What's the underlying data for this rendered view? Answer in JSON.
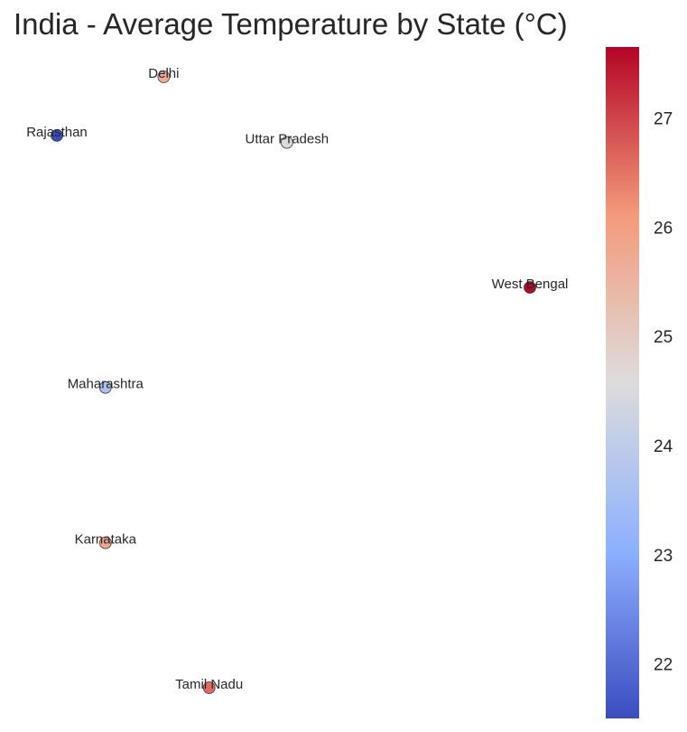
{
  "chart_data": {
    "type": "scatter",
    "title": "India - Average Temperature by State (°C)",
    "xlabel": "",
    "ylabel": "",
    "grid": false,
    "axes_visible": false,
    "points": [
      {
        "label": "Delhi",
        "x": 77.1,
        "y": 28.7,
        "value": 25.7
      },
      {
        "label": "Rajasthan",
        "x": 73.8,
        "y": 27.0,
        "value": 21.5
      },
      {
        "label": "Uttar Pradesh",
        "x": 80.9,
        "y": 26.8,
        "value": 24.5
      },
      {
        "label": "West Bengal",
        "x": 88.4,
        "y": 22.6,
        "value": 27.6
      },
      {
        "label": "Maharashtra",
        "x": 75.3,
        "y": 19.7,
        "value": 23.6
      },
      {
        "label": "Karnataka",
        "x": 75.3,
        "y": 15.2,
        "value": 25.8
      },
      {
        "label": "Tamil Nadu",
        "x": 78.5,
        "y": 11.0,
        "value": 26.6
      }
    ],
    "colorbar": {
      "colormap": "coolwarm",
      "range": [
        21.5,
        27.65
      ],
      "ticks": [
        22,
        23,
        24,
        25,
        26,
        27
      ],
      "position": "right"
    }
  }
}
